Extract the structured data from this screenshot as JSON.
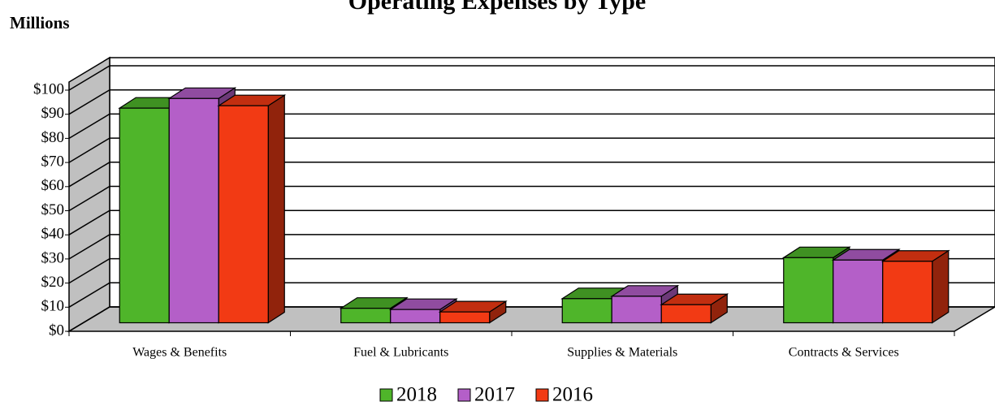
{
  "chart_data": {
    "type": "bar3d",
    "title": "Operating Expenses by Type",
    "subtitle": "Millions",
    "categories": [
      "Wages & Benefits",
      "Fuel & Lubricants",
      "Supplies & Materials",
      "Contracts & Services"
    ],
    "series": [
      {
        "name": "2018",
        "color": "#4fb52a",
        "values": [
          89,
          6,
          10,
          27
        ]
      },
      {
        "name": "2017",
        "color": "#b45fc8",
        "values": [
          93,
          5.5,
          11,
          26
        ]
      },
      {
        "name": "2016",
        "color": "#f23a14",
        "values": [
          90,
          4.5,
          7.5,
          25.5
        ]
      }
    ],
    "ylim": [
      0,
      100
    ],
    "yticks": [
      {
        "value": 0,
        "label": "$0"
      },
      {
        "value": 10,
        "label": "$10"
      },
      {
        "value": 20,
        "label": "$20"
      },
      {
        "value": 30,
        "label": "$30"
      },
      {
        "value": 40,
        "label": "$40"
      },
      {
        "value": 50,
        "label": "$50"
      },
      {
        "value": 60,
        "label": "$60"
      },
      {
        "value": 70,
        "label": "$70"
      },
      {
        "value": 80,
        "label": "$80"
      },
      {
        "value": 90,
        "label": "$90"
      },
      {
        "value": 100,
        "label": "$100"
      }
    ],
    "grid": true,
    "legend": "bottom"
  }
}
